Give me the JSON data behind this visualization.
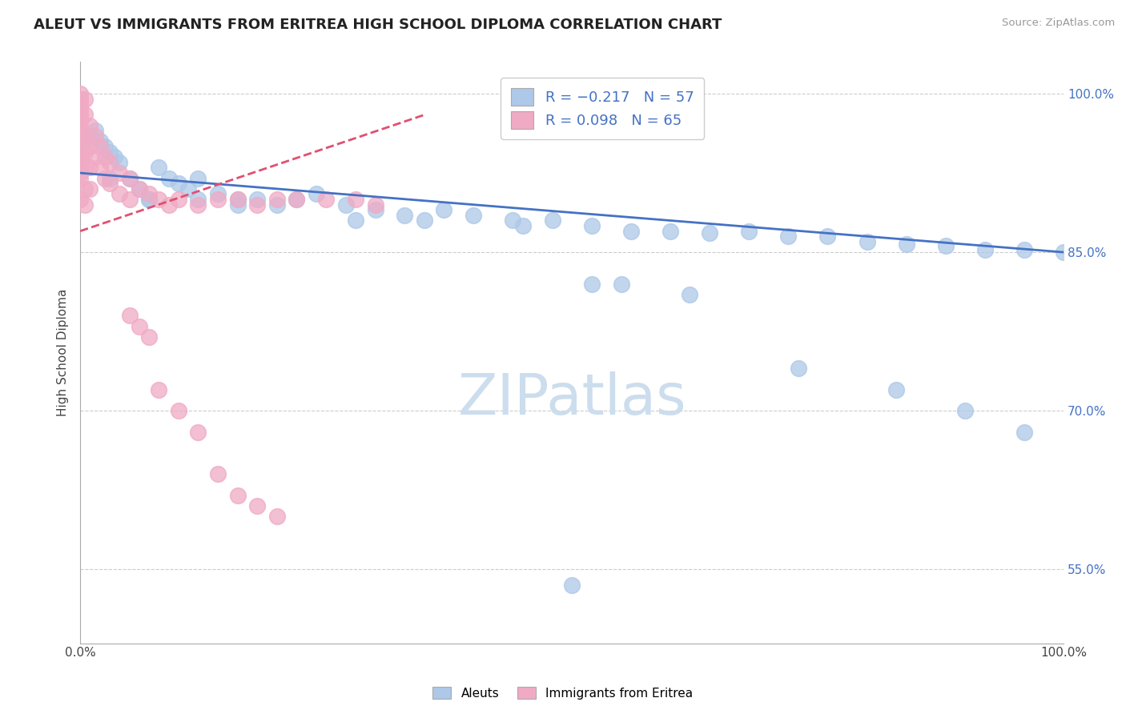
{
  "title": "ALEUT VS IMMIGRANTS FROM ERITREA HIGH SCHOOL DIPLOMA CORRELATION CHART",
  "source": "Source: ZipAtlas.com",
  "ylabel": "High School Diploma",
  "xlim": [
    0.0,
    1.0
  ],
  "ylim": [
    0.48,
    1.03
  ],
  "yticks": [
    0.55,
    0.7,
    0.85,
    1.0
  ],
  "ytick_labels": [
    "55.0%",
    "70.0%",
    "85.0%",
    "100.0%"
  ],
  "aleut_color": "#adc8e8",
  "eritrea_color": "#f0aac4",
  "trend_aleut_color": "#4472c4",
  "trend_eritrea_color": "#e05070",
  "background_color": "#ffffff",
  "watermark_color": "#ccdded",
  "aleut_R": -0.217,
  "aleut_N": 57,
  "eritrea_R": 0.098,
  "eritrea_N": 65,
  "aleut_x": [
    0.005,
    0.01,
    0.015,
    0.02,
    0.025,
    0.03,
    0.035,
    0.04,
    0.05,
    0.06,
    0.07,
    0.08,
    0.09,
    0.1,
    0.11,
    0.12,
    0.14,
    0.16,
    0.18,
    0.2,
    0.22,
    0.24,
    0.27,
    0.3,
    0.33,
    0.37,
    0.4,
    0.44,
    0.48,
    0.52,
    0.56,
    0.6,
    0.64,
    0.68,
    0.72,
    0.76,
    0.8,
    0.84,
    0.88,
    0.92,
    0.96,
    1.0,
    0.03,
    0.07,
    0.12,
    0.16,
    0.28,
    0.35,
    0.45,
    0.52,
    0.62,
    0.73,
    0.83,
    0.9,
    0.96,
    0.5,
    0.55
  ],
  "aleut_y": [
    0.955,
    0.96,
    0.965,
    0.955,
    0.95,
    0.945,
    0.94,
    0.935,
    0.92,
    0.91,
    0.9,
    0.93,
    0.92,
    0.915,
    0.91,
    0.9,
    0.905,
    0.9,
    0.9,
    0.895,
    0.9,
    0.905,
    0.895,
    0.89,
    0.885,
    0.89,
    0.885,
    0.88,
    0.88,
    0.875,
    0.87,
    0.87,
    0.868,
    0.87,
    0.865,
    0.865,
    0.86,
    0.858,
    0.856,
    0.852,
    0.852,
    0.85,
    0.92,
    0.9,
    0.92,
    0.895,
    0.88,
    0.88,
    0.875,
    0.82,
    0.81,
    0.74,
    0.72,
    0.7,
    0.68,
    0.535,
    0.82
  ],
  "eritrea_x": [
    0.0,
    0.0,
    0.0,
    0.0,
    0.0,
    0.0,
    0.0,
    0.0,
    0.0,
    0.0,
    0.0,
    0.0,
    0.0,
    0.0,
    0.0,
    0.0,
    0.0,
    0.0,
    0.005,
    0.005,
    0.005,
    0.005,
    0.005,
    0.005,
    0.005,
    0.01,
    0.01,
    0.01,
    0.01,
    0.015,
    0.015,
    0.02,
    0.02,
    0.025,
    0.025,
    0.03,
    0.03,
    0.04,
    0.04,
    0.05,
    0.05,
    0.06,
    0.07,
    0.08,
    0.09,
    0.1,
    0.12,
    0.14,
    0.16,
    0.18,
    0.2,
    0.22,
    0.25,
    0.28,
    0.3,
    0.05,
    0.06,
    0.07,
    0.08,
    0.1,
    0.12,
    0.14,
    0.16,
    0.18,
    0.2
  ],
  "eritrea_y": [
    1.0,
    0.995,
    0.99,
    0.985,
    0.98,
    0.975,
    0.97,
    0.965,
    0.96,
    0.955,
    0.95,
    0.945,
    0.94,
    0.935,
    0.93,
    0.925,
    0.92,
    0.9,
    0.995,
    0.98,
    0.96,
    0.945,
    0.93,
    0.91,
    0.895,
    0.97,
    0.95,
    0.93,
    0.91,
    0.96,
    0.94,
    0.95,
    0.93,
    0.94,
    0.92,
    0.935,
    0.915,
    0.925,
    0.905,
    0.92,
    0.9,
    0.91,
    0.905,
    0.9,
    0.895,
    0.9,
    0.895,
    0.9,
    0.9,
    0.895,
    0.9,
    0.9,
    0.9,
    0.9,
    0.895,
    0.79,
    0.78,
    0.77,
    0.72,
    0.7,
    0.68,
    0.64,
    0.62,
    0.61,
    0.6
  ]
}
